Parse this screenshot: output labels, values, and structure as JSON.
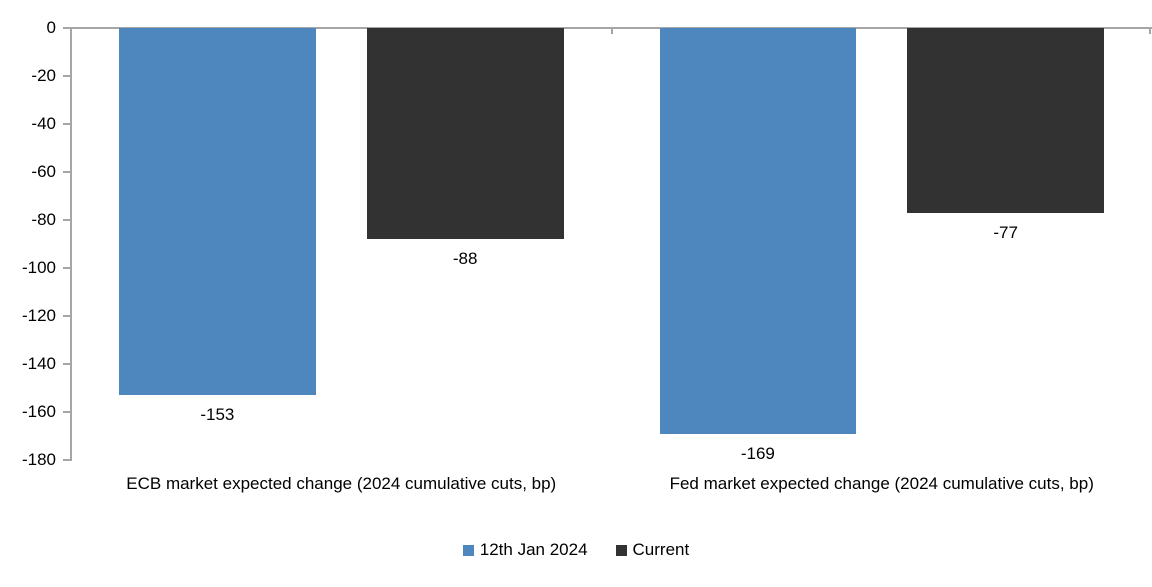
{
  "chart_data": {
    "type": "bar",
    "title": "",
    "categories": [
      "ECB market expected change (2024 cumulative cuts, bp)",
      "Fed market expected change (2024 cumulative cuts, bp)"
    ],
    "series": [
      {
        "name": "12th Jan 2024",
        "color": "#4e87be",
        "values": [
          -153,
          -169
        ]
      },
      {
        "name": "Current",
        "color": "#323232",
        "values": [
          -88,
          -77
        ]
      }
    ],
    "data_labels": [
      [
        "-153",
        "-169"
      ],
      [
        "-88",
        "-77"
      ]
    ],
    "ylim": [
      -180,
      0
    ],
    "yticks": [
      0,
      -20,
      -40,
      -60,
      -80,
      -100,
      -120,
      -140,
      -160,
      -180
    ],
    "ytick_step": 20,
    "xlabel": "",
    "ylabel": "",
    "grid": false,
    "legend_position": "bottom",
    "axis_color": "#a6a6a6",
    "background_color": "#ffffff"
  }
}
